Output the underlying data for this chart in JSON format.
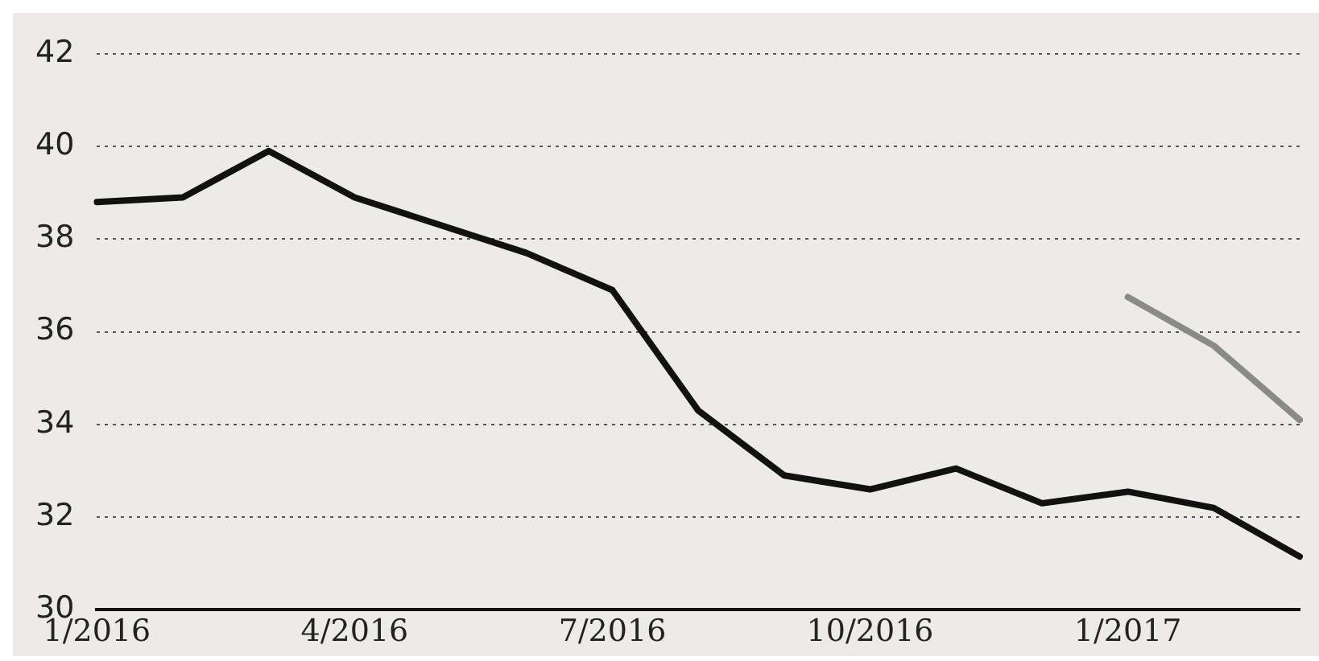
{
  "chart_data": {
    "type": "line",
    "categories": [
      "1/2016",
      null,
      null,
      "4/2016",
      null,
      null,
      "7/2016",
      null,
      null,
      "10/2016",
      null,
      null,
      "1/2017",
      null,
      null
    ],
    "series": [
      {
        "color": "#111111",
        "values": [
          38.8,
          38.9,
          39.9,
          38.9,
          38.3,
          37.7,
          36.9,
          34.3,
          32.9,
          32.6,
          33.05,
          32.3,
          32.55,
          32.2,
          31.15
        ]
      },
      {
        "color": "#8a8a8a",
        "values": [
          null,
          null,
          null,
          null,
          null,
          null,
          null,
          null,
          null,
          null,
          null,
          null,
          36.75,
          35.7,
          34.1
        ]
      }
    ],
    "ylim": [
      30,
      42
    ],
    "yticks": [
      30,
      32,
      34,
      36,
      38,
      40,
      42
    ],
    "grid": "y",
    "legend": false,
    "marker": "none",
    "line_style": "solid"
  }
}
